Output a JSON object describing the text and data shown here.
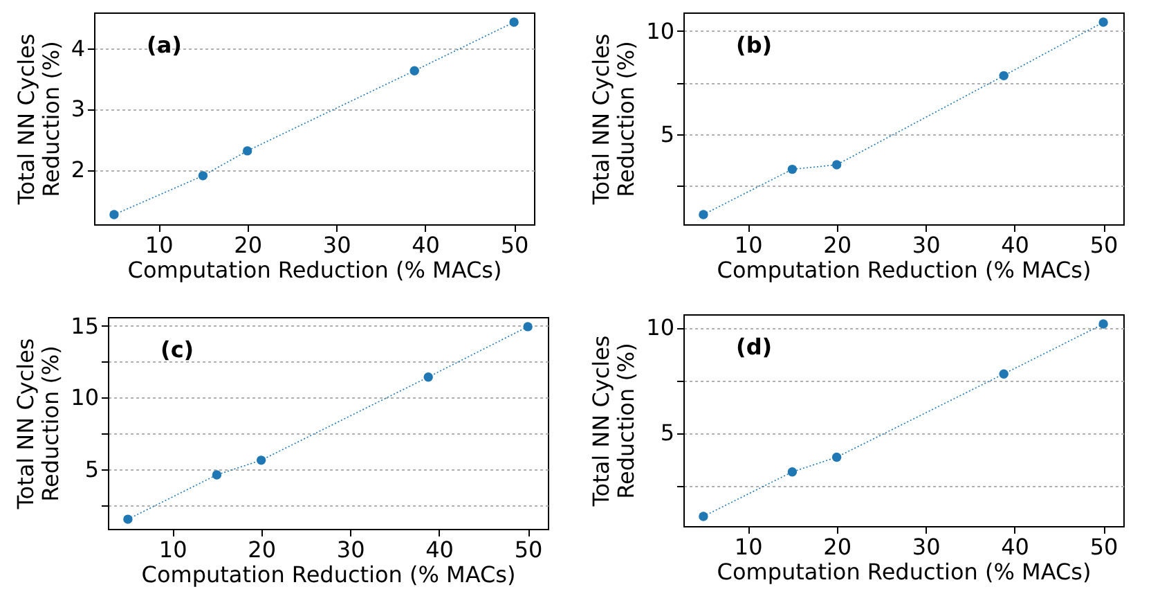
{
  "chart_data": [
    {
      "type": "line",
      "annotations": [
        "(a)"
      ],
      "xlabel": "Computation Reduction (% MACs)",
      "ylabel": "Total NN Cycles\nReduction (%)",
      "x": [
        5,
        15,
        20,
        38.8,
        50
      ],
      "series": [
        {
          "color": "#1f77b4",
          "values": [
            1.26,
            1.9,
            2.31,
            3.63,
            4.43
          ]
        }
      ],
      "xlim": [
        2.75,
        52.25
      ],
      "xticks": [
        10,
        20,
        30,
        40,
        50
      ],
      "ylim": [
        1.1,
        4.59
      ],
      "yticks": [
        2,
        3,
        4
      ],
      "grid": "y",
      "marker": "circle",
      "line_style": "dotted"
    },
    {
      "type": "line",
      "annotations": [
        "(b)"
      ],
      "xlabel": "Computation Reduction (% MACs)",
      "ylabel": "Total NN Cycles\nReduction (%)",
      "x": [
        5,
        15,
        20,
        38.8,
        50
      ],
      "series": [
        {
          "color": "#1f77b4",
          "values": [
            1.11,
            3.3,
            3.52,
            7.83,
            10.42
          ]
        }
      ],
      "xlim": [
        2.75,
        52.25
      ],
      "xticks": [
        10,
        20,
        30,
        40,
        50
      ],
      "ylim": [
        0.64,
        10.89
      ],
      "yticks": [
        {
          "value": 2.5,
          "label": null
        },
        5,
        {
          "value": 7.5,
          "label": null
        },
        10
      ],
      "grid": "y",
      "marker": "circle",
      "line_style": "dotted"
    },
    {
      "type": "line",
      "annotations": [
        "(c)"
      ],
      "xlabel": "Computation Reduction (% MACs)",
      "ylabel": "Total NN Cycles\nReduction (%)",
      "x": [
        5,
        15,
        20,
        38.8,
        50
      ],
      "series": [
        {
          "color": "#1f77b4",
          "values": [
            1.53,
            4.62,
            5.64,
            11.43,
            14.94
          ]
        }
      ],
      "xlim": [
        2.75,
        52.25
      ],
      "xticks": [
        10,
        20,
        30,
        40,
        50
      ],
      "ylim": [
        0.86,
        15.61
      ],
      "yticks": [
        {
          "value": 2.5,
          "label": null
        },
        5,
        {
          "value": 7.5,
          "label": null
        },
        10,
        {
          "value": 12.5,
          "label": null
        },
        15
      ],
      "grid": "y",
      "marker": "circle",
      "line_style": "dotted"
    },
    {
      "type": "line",
      "annotations": [
        "(d)"
      ],
      "xlabel": "Computation Reduction (% MACs)",
      "ylabel": "Total NN Cycles\nReduction (%)",
      "x": [
        5,
        15,
        20,
        38.8,
        50
      ],
      "series": [
        {
          "color": "#1f77b4",
          "values": [
            1.04,
            3.15,
            3.85,
            7.8,
            10.17
          ]
        }
      ],
      "xlim": [
        2.75,
        52.25
      ],
      "xticks": [
        10,
        20,
        30,
        40,
        50
      ],
      "ylim": [
        0.58,
        10.63
      ],
      "yticks": [
        {
          "value": 2.5,
          "label": null
        },
        5,
        {
          "value": 7.5,
          "label": null
        },
        10
      ],
      "grid": "y",
      "marker": "circle",
      "line_style": "dotted"
    }
  ]
}
